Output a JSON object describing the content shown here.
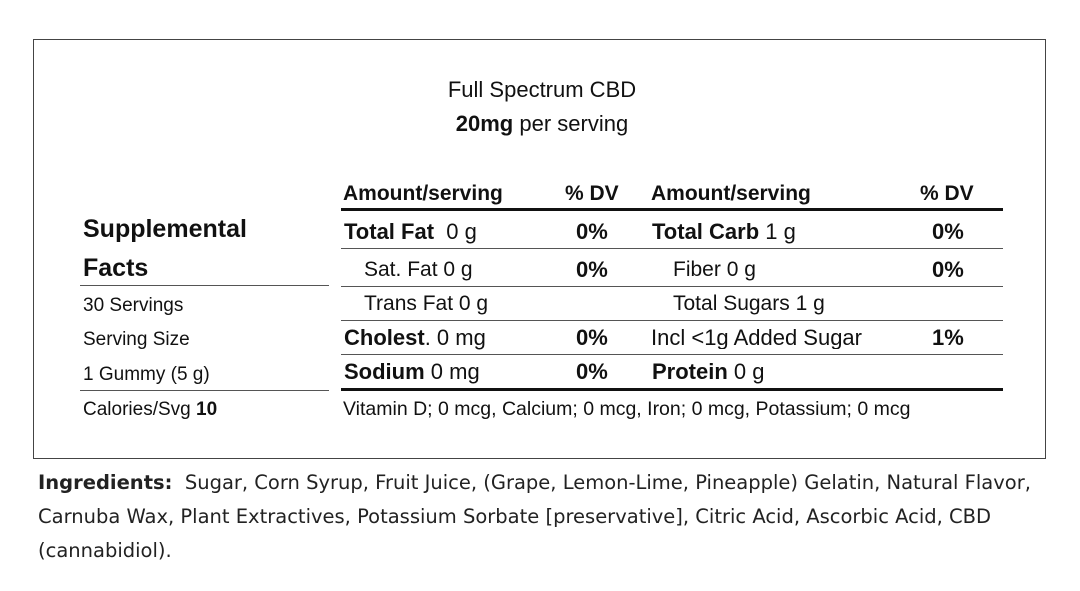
{
  "product": {
    "name": "Full Spectrum CBD",
    "dose_amount": "20mg",
    "dose_suffix": "per serving"
  },
  "left": {
    "title_line1": "Supplemental",
    "title_line2": "Facts",
    "servings": "30 Servings",
    "serving_size_label": "Serving Size",
    "serving_size_value": "1 Gummy (5 g)",
    "calories_label": "Calories/Svg",
    "calories_value": "10"
  },
  "headers": {
    "amount_left": "Amount/serving",
    "dv_left": "% DV",
    "amount_right": "Amount/serving",
    "dv_right": "% DV"
  },
  "rows": [
    {
      "l_name": "Total Fat",
      "l_value": "0 g",
      "l_dv": "0%",
      "r_name": "Total Carb",
      "r_value": "1 g",
      "r_dv": "0%"
    },
    {
      "l_name": "Sat. Fat",
      "l_value": "0 g",
      "l_dv": "0%",
      "r_name": "Fiber",
      "r_value": "0 g",
      "r_dv": "0%"
    },
    {
      "l_name": "Trans Fat",
      "l_value": "0 g",
      "l_dv": "",
      "r_name": "Total Sugars",
      "r_value": "1 g",
      "r_dv": ""
    },
    {
      "l_name": "Cholest",
      "l_value": ". 0 mg",
      "l_dv": "0%",
      "r_name": "Incl <1g Added Sugar",
      "r_value": "",
      "r_dv": "1%"
    },
    {
      "l_name": "Sodium",
      "l_value": "0 mg",
      "l_dv": "0%",
      "r_name": "Protein",
      "r_value": "0 g",
      "r_dv": ""
    }
  ],
  "vitamins": "Vitamin D; 0 mcg, Calcium; 0 mcg, Iron; 0 mcg, Potassium; 0 mcg",
  "ingredients": {
    "label": "Ingredients:",
    "text": "Sugar, Corn Syrup, Fruit Juice, (Grape, Lemon-Lime, Pineapple) Gelatin, Natural Flavor, Carnuba Wax, Plant Extractives, Potassium Sorbate [preservative], Citric Acid,  Ascorbic Acid, CBD (cannabidiol)."
  }
}
